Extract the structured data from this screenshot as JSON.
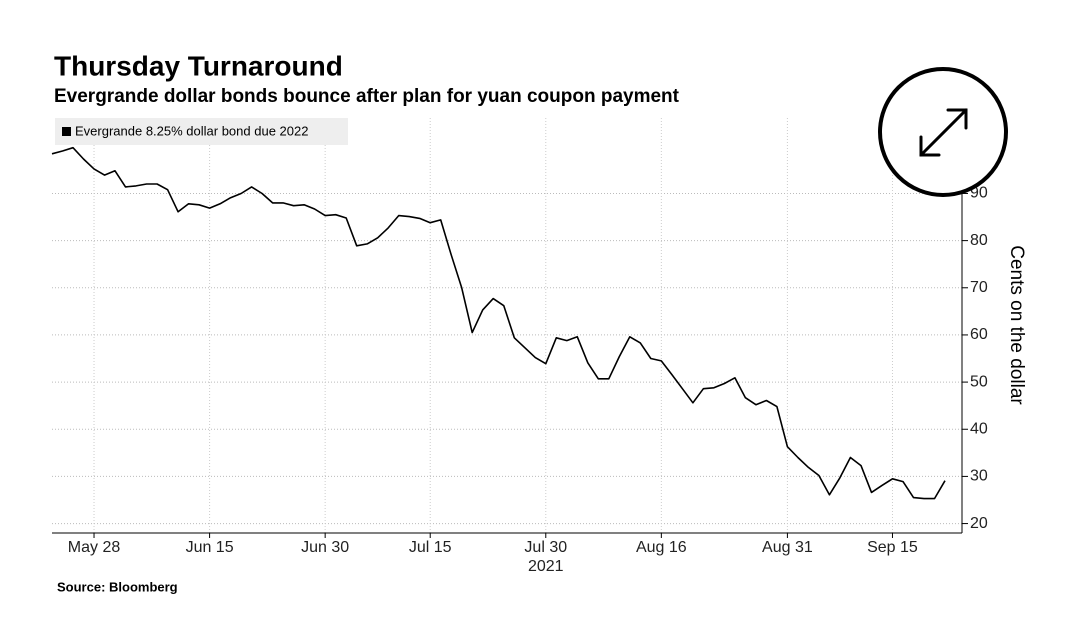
{
  "chart_data": {
    "type": "line",
    "title": "Thursday Turnaround",
    "subtitle": "Evergrande dollar bonds bounce after plan for yuan coupon payment",
    "source": "Source: Bloomberg",
    "ylabel": "Cents on the dollar",
    "xlabel": "2021",
    "categories": [
      null,
      null,
      null,
      null,
      "May 28",
      null,
      null,
      null,
      null,
      null,
      null,
      null,
      null,
      null,
      null,
      "Jun 15",
      null,
      null,
      null,
      null,
      null,
      null,
      null,
      null,
      null,
      null,
      "Jun 30",
      null,
      null,
      null,
      null,
      null,
      null,
      null,
      null,
      null,
      "Jul 15",
      null,
      null,
      null,
      null,
      null,
      null,
      null,
      null,
      null,
      null,
      "Jul 30",
      null,
      null,
      null,
      null,
      null,
      null,
      null,
      null,
      null,
      null,
      "Aug 16",
      null,
      null,
      null,
      null,
      null,
      null,
      null,
      null,
      null,
      null,
      null,
      "Aug 31",
      null,
      null,
      null,
      null,
      null,
      null,
      null,
      null,
      null,
      "Sep 15",
      null,
      null,
      null,
      null,
      null
    ],
    "series": [
      {
        "name": "Evergrande 8.25% dollar bond due 2022",
        "color": "#000000",
        "values": [
          98.4,
          99.0,
          99.7,
          97.3,
          95.2,
          93.9,
          94.8,
          91.4,
          91.6,
          92.0,
          92.0,
          90.8,
          86.1,
          87.8,
          87.6,
          86.9,
          87.8,
          89.1,
          90.0,
          91.4,
          90.0,
          88.0,
          88.0,
          87.4,
          87.6,
          86.7,
          85.3,
          85.5,
          84.8,
          78.9,
          79.3,
          80.6,
          82.7,
          85.3,
          85.1,
          84.7,
          83.8,
          84.4,
          77.0,
          70.0,
          60.5,
          65.3,
          67.7,
          66.2,
          59.4,
          57.3,
          55.2,
          53.9,
          59.4,
          58.8,
          59.6,
          54.1,
          50.7,
          50.7,
          55.4,
          59.6,
          58.3,
          55.0,
          54.5,
          51.6,
          48.6,
          45.6,
          48.6,
          48.8,
          49.7,
          50.9,
          46.7,
          45.2,
          46.1,
          44.8,
          36.3,
          34.0,
          31.9,
          30.2,
          26.1,
          29.7,
          34.0,
          32.3,
          26.6,
          28.1,
          29.5,
          28.9,
          25.5,
          25.3,
          25.3,
          29.1
        ]
      }
    ],
    "ylim": [
      18,
      106
    ],
    "yticks": [
      20,
      30,
      40,
      50,
      60,
      70,
      80,
      90
    ],
    "grid": true
  }
}
